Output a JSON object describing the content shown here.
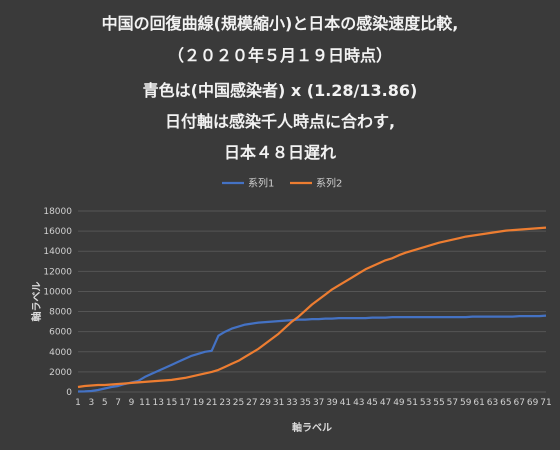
{
  "title_lines": [
    "中国の回復曲線(規模縮小)と日本の感染速度比較,",
    "（２０２０年５月１９日時点）",
    "青色は(中国感染者) x (1.28/13.86)",
    "日付軸は感染千人時点に合わす,",
    "日本４８日遅れ"
  ],
  "colors": {
    "background": "#3a3a3a",
    "gridline": "#555555",
    "series1": "#4472c4",
    "series2": "#ed7d31"
  },
  "chart_data": {
    "type": "line",
    "title": "中国の回復曲線(規模縮小)と日本の感染速度比較,（２０２０年５月１９日時点）青色は(中国感染者) x (1.28/13.86) 日付軸は感染千人時点に合わす, 日本４８日遅れ",
    "xlabel": "軸ラベル",
    "ylabel": "軸ラベル",
    "ylim": [
      0,
      18000
    ],
    "yticks": [
      0,
      2000,
      4000,
      6000,
      8000,
      10000,
      12000,
      14000,
      16000,
      18000
    ],
    "xtick_labels": [
      "1",
      "3",
      "5",
      "7",
      "9",
      "11",
      "13",
      "15",
      "17",
      "19",
      "21",
      "23",
      "25",
      "27",
      "29",
      "31",
      "33",
      "35",
      "37",
      "39",
      "41",
      "43",
      "45",
      "47",
      "49",
      "51",
      "53",
      "55",
      "57",
      "59",
      "61",
      "63",
      "65",
      "67",
      "69",
      "71"
    ],
    "legend_position": "top-center",
    "grid": true,
    "x": [
      1,
      2,
      3,
      4,
      5,
      6,
      7,
      8,
      9,
      10,
      11,
      12,
      13,
      14,
      15,
      16,
      17,
      18,
      19,
      20,
      21,
      22,
      23,
      24,
      25,
      26,
      27,
      28,
      29,
      30,
      31,
      32,
      33,
      34,
      35,
      36,
      37,
      38,
      39,
      40,
      41,
      42,
      43,
      44,
      45,
      46,
      47,
      48,
      49,
      50,
      51,
      52,
      53,
      54,
      55,
      56,
      57,
      58,
      59,
      60,
      61,
      62,
      63,
      64,
      65,
      66,
      67,
      68,
      69,
      70,
      71
    ],
    "series": [
      {
        "name": "系列1",
        "values": [
          50,
          60,
          100,
          200,
          350,
          500,
          600,
          800,
          950,
          1100,
          1500,
          1800,
          2100,
          2400,
          2700,
          3000,
          3300,
          3600,
          3800,
          4000,
          4100,
          5600,
          6000,
          6300,
          6500,
          6700,
          6800,
          6900,
          6950,
          7000,
          7050,
          7100,
          7150,
          7200,
          7200,
          7250,
          7250,
          7300,
          7300,
          7350,
          7350,
          7350,
          7350,
          7350,
          7400,
          7400,
          7400,
          7450,
          7450,
          7450,
          7450,
          7450,
          7450,
          7450,
          7450,
          7450,
          7450,
          7450,
          7450,
          7500,
          7500,
          7500,
          7500,
          7500,
          7500,
          7500,
          7550,
          7550,
          7550,
          7550,
          7600
        ]
      },
      {
        "name": "系列2",
        "values": [
          500,
          600,
          650,
          700,
          700,
          750,
          800,
          850,
          900,
          950,
          1000,
          1050,
          1100,
          1150,
          1200,
          1300,
          1400,
          1550,
          1700,
          1850,
          2000,
          2200,
          2500,
          2800,
          3100,
          3500,
          3900,
          4300,
          4800,
          5300,
          5800,
          6400,
          7000,
          7500,
          8100,
          8700,
          9200,
          9700,
          10200,
          10600,
          11000,
          11400,
          11800,
          12200,
          12500,
          12800,
          13100,
          13300,
          13600,
          13850,
          14050,
          14250,
          14450,
          14650,
          14850,
          15000,
          15150,
          15300,
          15450,
          15550,
          15650,
          15750,
          15850,
          15950,
          16050,
          16100,
          16150,
          16200,
          16250,
          16300,
          16350
        ]
      }
    ]
  }
}
